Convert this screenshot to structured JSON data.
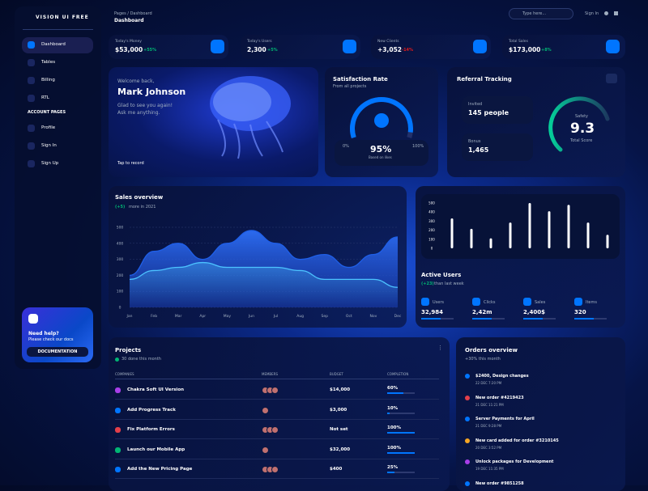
{
  "sidebar": {
    "brand": "VISION UI FREE",
    "nav": [
      "Dashboard",
      "Tables",
      "Billing",
      "RTL"
    ],
    "section": "ACCOUNT PAGES",
    "account_nav": [
      "Profile",
      "Sign In",
      "Sign Up"
    ],
    "help": {
      "title": "Need help?",
      "text": "Please check our docs",
      "button": "DOCUMENTATION"
    }
  },
  "header": {
    "breadcrumb": "Pages / Dashboard",
    "title": "Dashboard",
    "search": "Type here...",
    "sign_in": "Sign In"
  },
  "stats": [
    {
      "label": "Today's Money",
      "value": "$53,000",
      "change": "+55%"
    },
    {
      "label": "Today's Users",
      "value": "2,300",
      "change": "+5%"
    },
    {
      "label": "New Clients",
      "value": "+3,052",
      "change": "-14%"
    },
    {
      "label": "Total Sales",
      "value": "$173,000",
      "change": "+8%"
    }
  ],
  "welcome": {
    "greeting": "Welcome back,",
    "name": "Mark Johnson",
    "line1": "Glad to see you again!",
    "line2": "Ask me anything.",
    "link": "Tap to record"
  },
  "satisfaction": {
    "title": "Satisfaction Rate",
    "subtitle": "From all projects",
    "gauge": {
      "value": 95,
      "label": "95%",
      "min": "0%",
      "max": "100%",
      "caption": "Based on likes"
    }
  },
  "referral": {
    "title": "Referral Tracking",
    "invited_label": "Invited",
    "invited": "145 people",
    "bonus_label": "Bonus",
    "bonus": "1,465",
    "safety_label": "Safety",
    "score": "9.3",
    "score_label": "Total Score"
  },
  "sales_overview": {
    "title": "Sales overview",
    "change": "(+5)",
    "subtitle": "more in 2021",
    "chart": {
      "type": "area",
      "categories": [
        "Jan",
        "Feb",
        "Mar",
        "Apr",
        "May",
        "Jun",
        "Jul",
        "Aug",
        "Sep",
        "Oct",
        "Nov",
        "Dec"
      ],
      "ylim": [
        0,
        500
      ],
      "yticks": [
        0,
        100,
        200,
        300,
        400,
        500
      ],
      "series": [
        {
          "color": "#1f5fe8",
          "values": [
            200,
            350,
            400,
            300,
            400,
            480,
            400,
            300,
            330,
            250,
            330,
            440
          ]
        },
        {
          "color": "#4cc3ff",
          "values": [
            175,
            230,
            250,
            280,
            250,
            250,
            250,
            230,
            175,
            175,
            175,
            125
          ]
        }
      ]
    }
  },
  "active_users": {
    "chart": {
      "type": "bar",
      "values": [
        330,
        215,
        110,
        285,
        500,
        410,
        480,
        285,
        150
      ],
      "color": "#ffffff",
      "ylim": [
        0,
        500
      ],
      "yticks": [
        0,
        100,
        200,
        300,
        400,
        500
      ]
    },
    "title": "Active Users",
    "change": "(+23)",
    "subtitle": "than last week",
    "stats": [
      {
        "label": "Users",
        "value": "32,984"
      },
      {
        "label": "Clicks",
        "value": "2,42m"
      },
      {
        "label": "Sales",
        "value": "2,400$"
      },
      {
        "label": "Items",
        "value": "320"
      }
    ]
  },
  "projects": {
    "title": "Projects",
    "subtitle": "30 done this month",
    "columns": [
      "COMPANIES",
      "MEMBERS",
      "BUDGET",
      "COMPLETION"
    ],
    "rows": [
      {
        "company": "Chakra Soft UI Version",
        "budget": "$14,000",
        "completion": 60,
        "completion_label": "60%"
      },
      {
        "company": "Add Progress Track",
        "budget": "$3,000",
        "completion": 10,
        "completion_label": "10%"
      },
      {
        "company": "Fix Platform Errors",
        "budget": "Not set",
        "completion": 100,
        "completion_label": "100%"
      },
      {
        "company": "Launch our Mobile App",
        "budget": "$32,000",
        "completion": 100,
        "completion_label": "100%"
      },
      {
        "company": "Add the New Pricing Page",
        "budget": "$400",
        "completion": 25,
        "completion_label": "25%"
      }
    ]
  },
  "orders": {
    "title": "Orders overview",
    "subtitle": "+30% this month",
    "items": [
      {
        "text": "$2400, Design changes",
        "date": "22 DEC 7:20 PM"
      },
      {
        "text": "New order #4219423",
        "date": "21 DEC 11:21 PM"
      },
      {
        "text": "Server Payments for April",
        "date": "21 DEC 9:28 PM"
      },
      {
        "text": "New card added for order #3210145",
        "date": "20 DEC 3:52 PM"
      },
      {
        "text": "Unlock packages for Development",
        "date": "19 DEC 11:35 PM"
      },
      {
        "text": "New order #9851258",
        "date": null
      }
    ]
  }
}
